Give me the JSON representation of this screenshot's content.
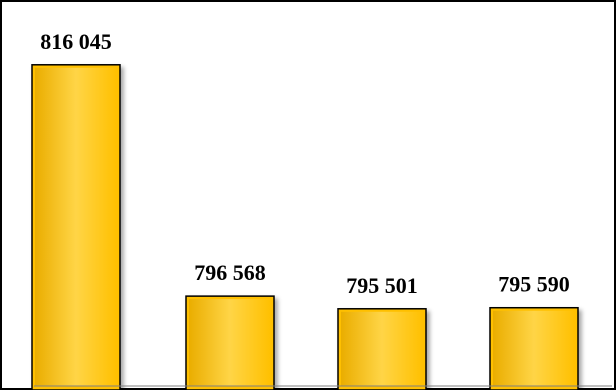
{
  "chart_data": {
    "type": "bar",
    "categories": [
      "",
      "",
      "",
      ""
    ],
    "values": [
      816045,
      796568,
      795501,
      795590
    ],
    "value_labels": [
      "816 045",
      "796 568",
      "795 501",
      "795 590"
    ],
    "title": "",
    "xlabel": "",
    "ylabel": "",
    "ylim": [
      789000,
      821500
    ],
    "grid": false,
    "legend": "none",
    "colors": {
      "bar_fill": "#FFC000",
      "bar_highlight": "#FFE680",
      "bar_shadow": "#D99E00",
      "bar_stroke": "#000000",
      "axis": "#808080"
    }
  }
}
